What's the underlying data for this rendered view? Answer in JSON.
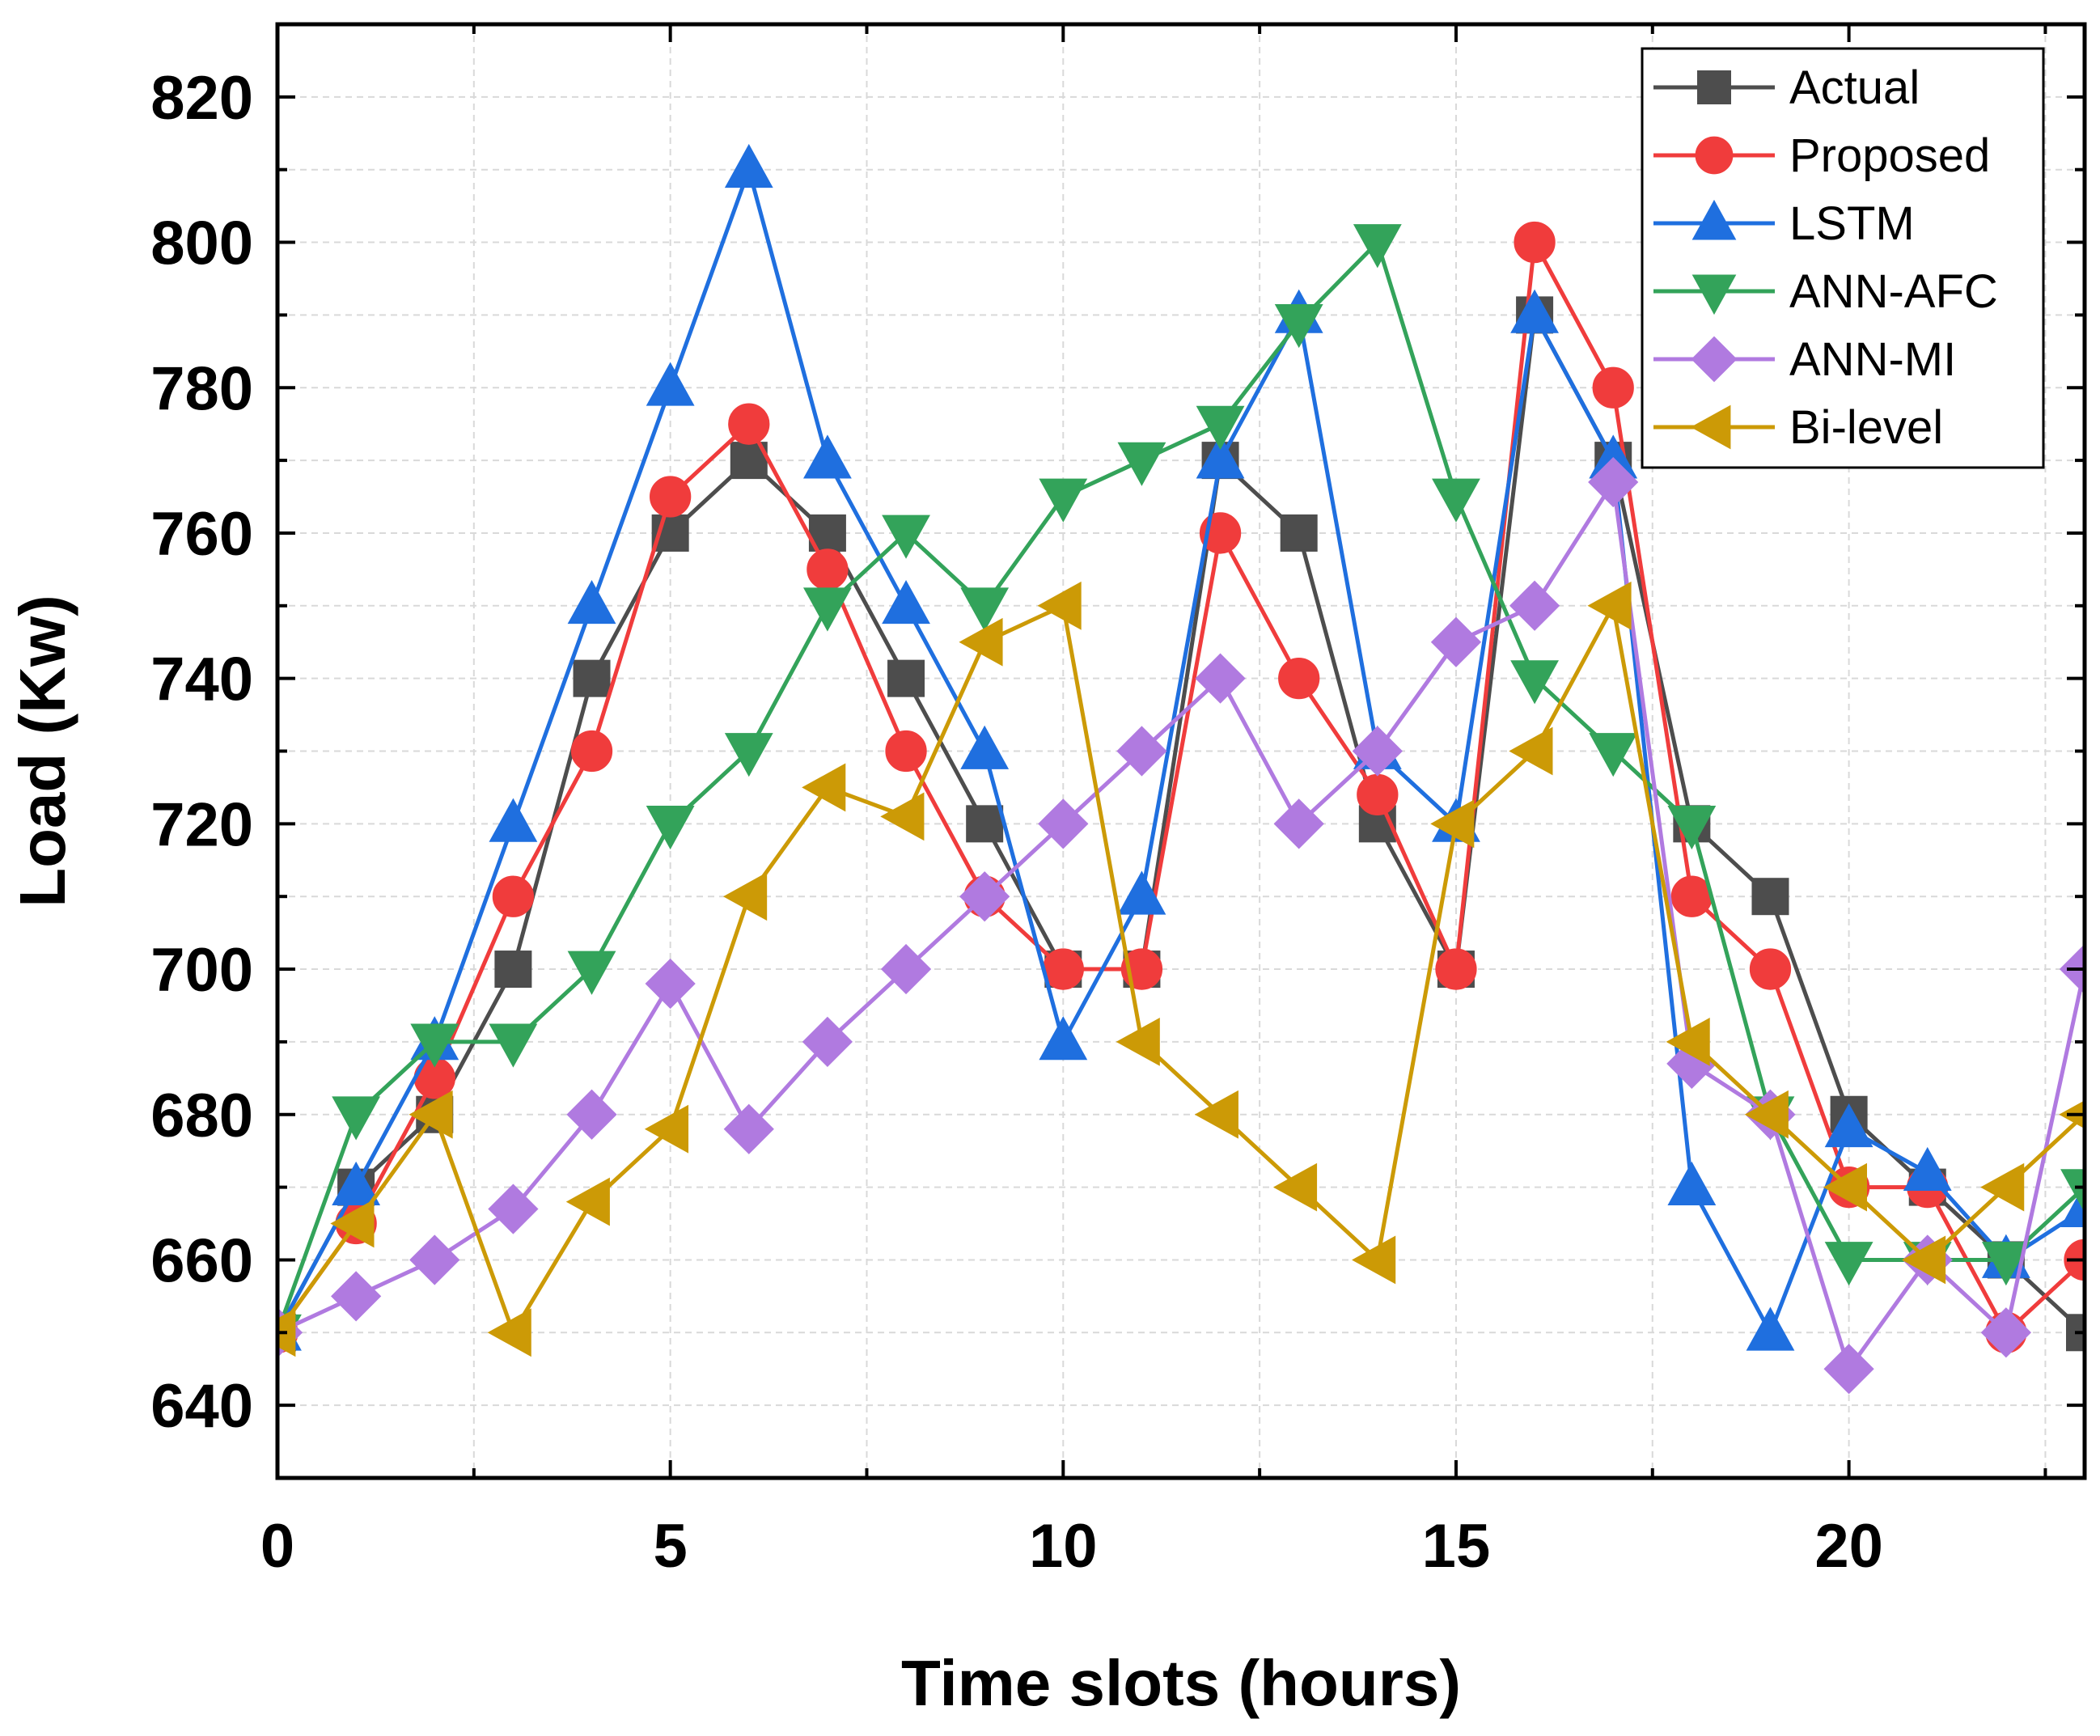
{
  "chart_data": {
    "type": "line",
    "title": "",
    "xlabel": "Time slots (hours)",
    "ylabel": "Load (Kw)",
    "xlim": [
      0,
      23
    ],
    "ylim": [
      630,
      830
    ],
    "xticks": [
      0,
      5,
      10,
      15,
      20
    ],
    "yticks": [
      640,
      660,
      680,
      700,
      720,
      740,
      760,
      780,
      800,
      820
    ],
    "grid": true,
    "legend_position": "top-right",
    "x": [
      0,
      1,
      2,
      3,
      4,
      5,
      6,
      7,
      8,
      9,
      10,
      11,
      12,
      13,
      14,
      15,
      16,
      17,
      18,
      19,
      20,
      21,
      22,
      23
    ],
    "series": [
      {
        "name": "Actual",
        "color": "#4d4d4d",
        "marker": "square",
        "values": [
          650,
          670,
          680,
          700,
          740,
          760,
          770,
          760,
          740,
          720,
          700,
          700,
          770,
          760,
          720,
          700,
          790,
          770,
          720,
          710,
          680,
          670,
          660,
          650
        ]
      },
      {
        "name": "Proposed",
        "color": "#f03c3c",
        "marker": "circle",
        "values": [
          650,
          665,
          685,
          710,
          730,
          765,
          775,
          755,
          730,
          710,
          700,
          700,
          760,
          740,
          724,
          700,
          800,
          780,
          710,
          700,
          670,
          670,
          650,
          660
        ]
      },
      {
        "name": "LSTM",
        "color": "#1f6fdf",
        "marker": "triangle-up",
        "values": [
          650,
          670,
          690,
          720,
          750,
          780,
          810,
          770,
          750,
          730,
          690,
          710,
          770,
          790,
          730,
          720,
          790,
          770,
          670,
          650,
          678,
          672,
          660,
          667
        ]
      },
      {
        "name": "ANN-AFC",
        "color": "#33a35a",
        "marker": "triangle-down",
        "values": [
          650,
          680,
          690,
          690,
          700,
          720,
          730,
          750,
          760,
          750,
          765,
          770,
          775,
          789,
          800,
          765,
          740,
          730,
          720,
          680,
          660,
          660,
          660,
          670
        ]
      },
      {
        "name": "ANN-MI",
        "color": "#b07ae0",
        "marker": "diamond",
        "values": [
          650,
          655,
          660,
          667,
          680,
          698,
          678,
          690,
          700,
          710,
          720,
          730,
          740,
          720,
          730,
          745,
          750,
          767,
          687,
          680,
          645,
          660,
          650,
          700
        ]
      },
      {
        "name": "Bi-level",
        "color": "#cc9a06",
        "marker": "triangle-left",
        "values": [
          650,
          665,
          680,
          650,
          668,
          678,
          710,
          725,
          721,
          745,
          750,
          690,
          680,
          670,
          660,
          720,
          730,
          750,
          690,
          680,
          670,
          660,
          670,
          680
        ]
      }
    ]
  }
}
